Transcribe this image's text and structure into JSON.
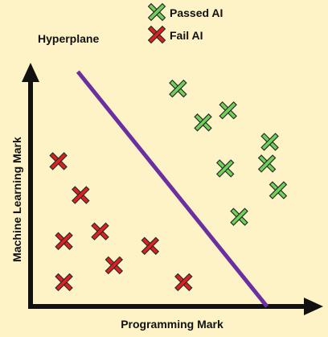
{
  "chart_data": {
    "type": "scatter",
    "xlabel": "Programming Mark",
    "ylabel": "Machine Learning Mark",
    "annotations": [
      {
        "text": "Hyperplane"
      }
    ],
    "legend": {
      "placement": "top-right"
    },
    "marker": "x",
    "xlim": [
      0,
      100
    ],
    "ylim": [
      0,
      100
    ],
    "grid": false,
    "hyperplane": {
      "from": [
        17,
        97
      ],
      "to": [
        85,
        0
      ],
      "color": "#6a2fa0"
    },
    "series": [
      {
        "name": "Passed AI",
        "color": "#6fd35a",
        "points": [
          [
            53,
            90
          ],
          [
            62,
            76
          ],
          [
            71,
            81
          ],
          [
            86,
            68
          ],
          [
            70,
            57
          ],
          [
            85,
            59
          ],
          [
            75,
            37
          ],
          [
            89,
            48
          ]
        ]
      },
      {
        "name": "Fail AI",
        "color": "#e02020",
        "points": [
          [
            10,
            60
          ],
          [
            18,
            46
          ],
          [
            12,
            27
          ],
          [
            25,
            31
          ],
          [
            30,
            17
          ],
          [
            43,
            25
          ],
          [
            12,
            10
          ],
          [
            55,
            10
          ]
        ]
      }
    ]
  },
  "colors": {
    "background": "#fdf3c6",
    "axis": "#111111"
  }
}
